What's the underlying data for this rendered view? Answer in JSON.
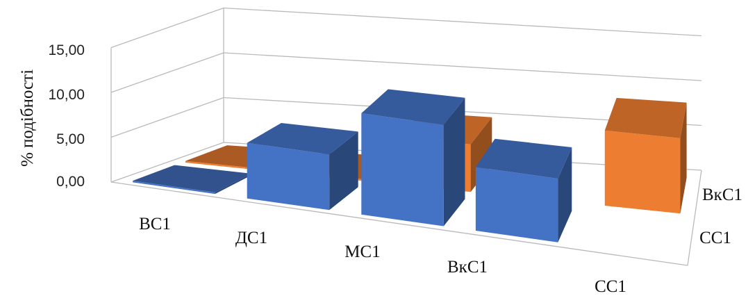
{
  "chart_data": {
    "type": "bar",
    "subtype": "3d-column",
    "ylabel": "% подібності",
    "yticks": [
      "0,00",
      "5,00",
      "10,00",
      "15,00"
    ],
    "ylim": [
      0,
      15
    ],
    "grid": true,
    "categories": [
      "ВС1",
      "ДС1",
      "МС1",
      "ВкС1",
      "СС1"
    ],
    "series": [
      {
        "name": "СС1",
        "color": "#4472C4",
        "values": [
          0.0,
          6.2,
          11.3,
          7.1,
          null
        ]
      },
      {
        "name": "ВкС1",
        "color": "#ED7D31",
        "values": [
          0.0,
          0.0,
          5.3,
          null,
          8.4
        ]
      }
    ]
  }
}
